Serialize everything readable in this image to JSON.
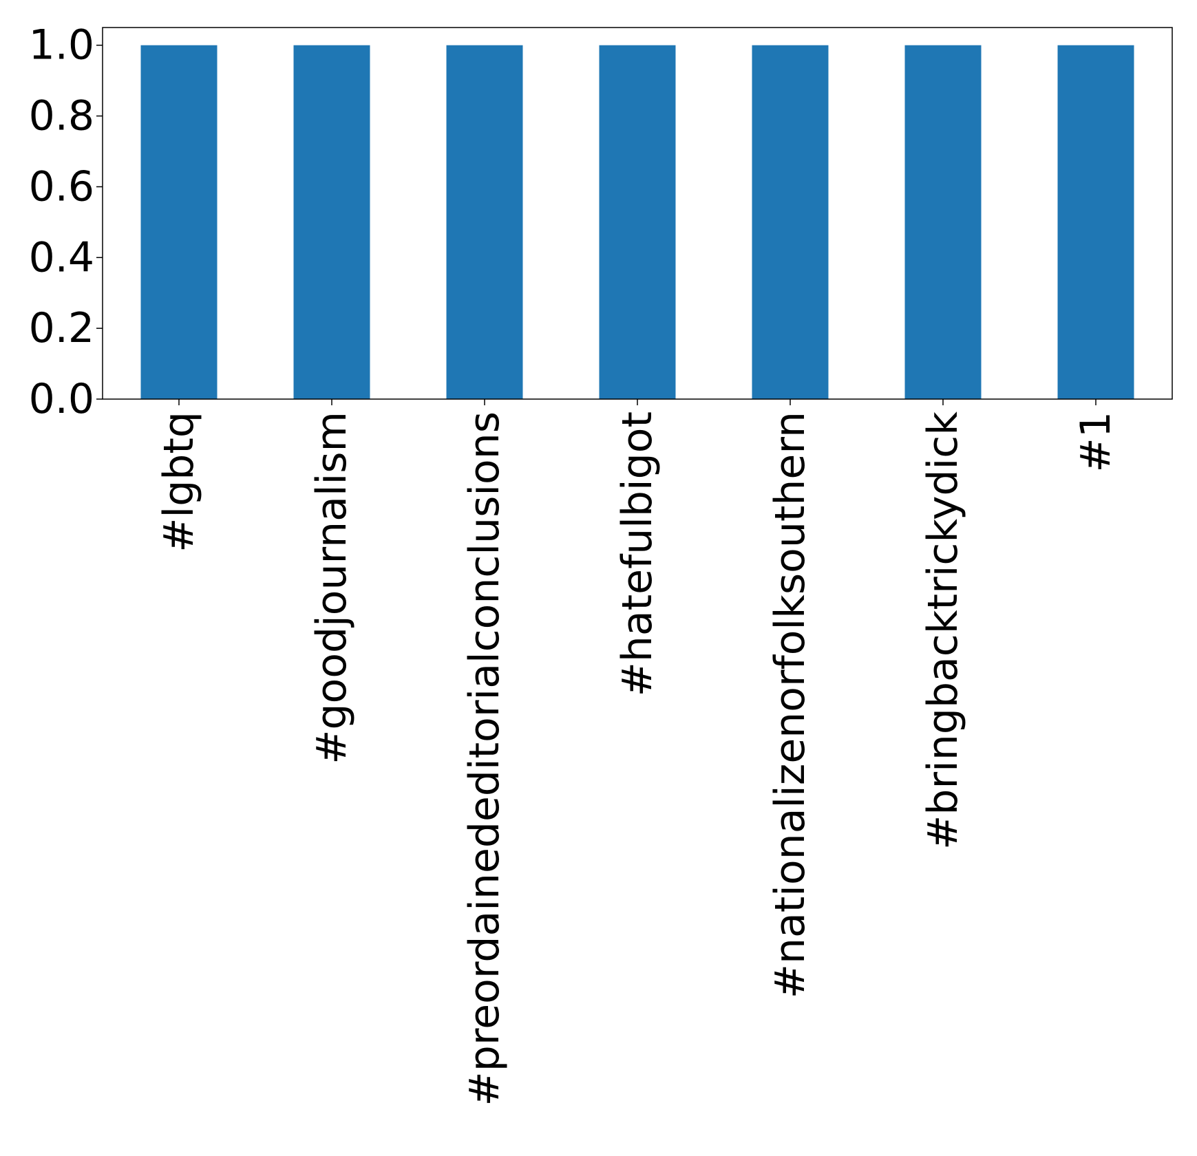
{
  "chart_data": {
    "type": "bar",
    "title": "",
    "xlabel": "",
    "ylabel": "",
    "categories": [
      "#lgbtq",
      "#goodjournalism",
      "#preordainededitorialconclusions",
      "#hatefulbigot",
      "#nationalizenorfolksouthern",
      "#bringbacktrickydick",
      "#1"
    ],
    "values": [
      1.0,
      1.0,
      1.0,
      1.0,
      1.0,
      1.0,
      1.0
    ],
    "ylim": [
      0.0,
      1.05
    ],
    "yticks": [
      0.0,
      0.2,
      0.4,
      0.6,
      0.8,
      1.0
    ],
    "ytick_labels": [
      "0.0",
      "0.2",
      "0.4",
      "0.6",
      "0.8",
      "1.0"
    ],
    "grid": false,
    "legend": "none",
    "bar_color": "#1f77b4"
  }
}
